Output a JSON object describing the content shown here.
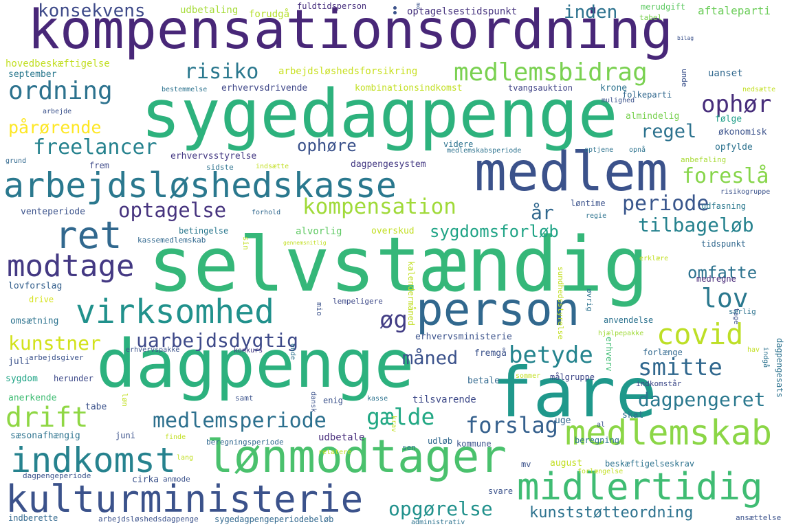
{
  "words": [
    {
      "text": "kompensationsordning",
      "color": "#482778"
    },
    {
      "text": "sygedagpenge",
      "color": "#2db27d"
    },
    {
      "text": "medlem",
      "color": "#3b528b"
    },
    {
      "text": "arbejdsløshedskasse",
      "color": "#2a788e"
    },
    {
      "text": "selvstændig",
      "color": "#35b779"
    },
    {
      "text": "person",
      "color": "#31688e"
    },
    {
      "text": "dagpenge",
      "color": "#2cb17e"
    },
    {
      "text": "fare",
      "color": "#1f988b"
    },
    {
      "text": "lønmodtager",
      "color": "#4ac16d"
    },
    {
      "text": "medlemskab",
      "color": "#8bd646"
    },
    {
      "text": "midlertidig",
      "color": "#3fbc73"
    },
    {
      "text": "kulturministerie",
      "color": "#3b528b"
    },
    {
      "text": "indkomst",
      "color": "#26828e"
    },
    {
      "text": "virksomhed",
      "color": "#21918c"
    },
    {
      "text": "modtage",
      "color": "#443983"
    },
    {
      "text": "ret",
      "color": "#31688e"
    },
    {
      "text": "ordning",
      "color": "#2c728e"
    },
    {
      "text": "medlemsbidrag",
      "color": "#7ad151"
    },
    {
      "text": "risiko",
      "color": "#2a788e"
    },
    {
      "text": "konsekvens",
      "color": "#3e4a89"
    },
    {
      "text": "freelancer",
      "color": "#26828e"
    },
    {
      "text": "pårørende",
      "color": "#fde725"
    },
    {
      "text": "kompensation",
      "color": "#a0da39"
    },
    {
      "text": "optagelse",
      "color": "#46337e"
    },
    {
      "text": "ophør",
      "color": "#472d7b"
    },
    {
      "text": "regel",
      "color": "#2c728e"
    },
    {
      "text": "foreslå",
      "color": "#86d549"
    },
    {
      "text": "periode",
      "color": "#39568c"
    },
    {
      "text": "tilbageløb",
      "color": "#26828e"
    },
    {
      "text": "år",
      "color": "#31688e"
    },
    {
      "text": "sygdomsforløb",
      "color": "#20a486"
    },
    {
      "text": "lov",
      "color": "#2a788e"
    },
    {
      "text": "omfatte",
      "color": "#2c728e"
    },
    {
      "text": "covid",
      "color": "#bddf26"
    },
    {
      "text": "smitte",
      "color": "#31688e"
    },
    {
      "text": "betyde",
      "color": "#25848e"
    },
    {
      "text": "uarbejdsdygtig",
      "color": "#3e4a89"
    },
    {
      "text": "øg",
      "color": "#433e85"
    },
    {
      "text": "kunstner",
      "color": "#d2e21b"
    },
    {
      "text": "drift",
      "color": "#8fd744"
    },
    {
      "text": "medlemsperiode",
      "color": "#2d708e"
    },
    {
      "text": "gælde",
      "color": "#22a884"
    },
    {
      "text": "forslag",
      "color": "#35608d"
    },
    {
      "text": "måned",
      "color": "#3b528b"
    },
    {
      "text": "dagpengeret",
      "color": "#2a788e"
    },
    {
      "text": "opgørelse",
      "color": "#21918c"
    },
    {
      "text": "kunststøtteordning",
      "color": "#2c728e"
    },
    {
      "text": "inden",
      "color": "#2c728e"
    },
    {
      "text": "ophøre",
      "color": "#3b528b"
    },
    {
      "text": "udbetaling",
      "color": "#a5db36"
    },
    {
      "text": "forudgå",
      "color": "#b5de2b"
    },
    {
      "text": "fuldtidsperson",
      "color": "#472f7d"
    },
    {
      "text": "optagelsestidspunkt",
      "color": "#46337e"
    },
    {
      "text": "merudgift",
      "color": "#5ec962"
    },
    {
      "text": "aftaleparti",
      "color": "#6ccd5a"
    },
    {
      "text": "tabel",
      "color": "#7ad151"
    },
    {
      "text": "hovedbeskæftigelse",
      "color": "#c2df23"
    },
    {
      "text": "september",
      "color": "#2a788e"
    },
    {
      "text": "arbejdsløshedsforsikring",
      "color": "#c8e020"
    },
    {
      "text": "erhvervsdrivende",
      "color": "#3f4788"
    },
    {
      "text": "kombinationsindkomst",
      "color": "#c2df23"
    },
    {
      "text": "tvangsauktion",
      "color": "#414487"
    },
    {
      "text": "krone",
      "color": "#2c728e"
    },
    {
      "text": "folkeparti",
      "color": "#31688e"
    },
    {
      "text": "uanset",
      "color": "#31688e"
    },
    {
      "text": "almindelig",
      "color": "#7ad151"
    },
    {
      "text": "følge",
      "color": "#1f9e89"
    },
    {
      "text": "økonomisk",
      "color": "#3b528b"
    },
    {
      "text": "opfylde",
      "color": "#2c728e"
    },
    {
      "text": "erhvervsstyrelse",
      "color": "#443983"
    },
    {
      "text": "videre",
      "color": "#2c728e"
    },
    {
      "text": "medlemskabsperiode",
      "color": "#2c728e"
    },
    {
      "text": "optjene",
      "color": "#2c728e"
    },
    {
      "text": "dagpengesystem",
      "color": "#443983"
    },
    {
      "text": "frem",
      "color": "#3e4a89"
    },
    {
      "text": "sidste",
      "color": "#2c728e"
    },
    {
      "text": "indsætte",
      "color": "#c2df23"
    },
    {
      "text": "anbefaling",
      "color": "#a8db34"
    },
    {
      "text": "grund",
      "color": "#31688e"
    },
    {
      "text": "venteperiode",
      "color": "#3b528b"
    },
    {
      "text": "løntime",
      "color": "#3b528b"
    },
    {
      "text": "udfasning",
      "color": "#2a788e"
    },
    {
      "text": "forhold",
      "color": "#31688e"
    },
    {
      "text": "betingelse",
      "color": "#2a788e"
    },
    {
      "text": "kassemedlemskab",
      "color": "#31688e"
    },
    {
      "text": "alvorlig",
      "color": "#5ec962"
    },
    {
      "text": "overskud",
      "color": "#c2df23"
    },
    {
      "text": "tidspunkt",
      "color": "#31688e"
    },
    {
      "text": "lovforslag",
      "color": "#35608d"
    },
    {
      "text": "drive",
      "color": "#d5e21a"
    },
    {
      "text": "lempeligere",
      "color": "#3e4a89"
    },
    {
      "text": "medregne",
      "color": "#482878"
    },
    {
      "text": "omsætning",
      "color": "#2c728e"
    },
    {
      "text": "erhvervsministerie",
      "color": "#3b528b"
    },
    {
      "text": "anvendelse",
      "color": "#2c728e"
    },
    {
      "text": "hjælpepakke",
      "color": "#a0da39"
    },
    {
      "text": "juli",
      "color": "#3b528b"
    },
    {
      "text": "arbejdsgiver",
      "color": "#3b528b"
    },
    {
      "text": "erhvervspakke",
      "color": "#3b528b"
    },
    {
      "text": "konkurs",
      "color": "#443983"
    },
    {
      "text": "fremgå",
      "color": "#3b528b"
    },
    {
      "text": "forlænge",
      "color": "#31688e"
    },
    {
      "text": "sygdom",
      "color": "#20a486"
    },
    {
      "text": "herunder",
      "color": "#3e4a89"
    },
    {
      "text": "betale",
      "color": "#31688e"
    },
    {
      "text": "sommer",
      "color": "#c2df23"
    },
    {
      "text": "målgruppe",
      "color": "#3f4788"
    },
    {
      "text": "indkomstår",
      "color": "#3e4a89"
    },
    {
      "text": "anerkende",
      "color": "#3fbc73"
    },
    {
      "text": "tabe",
      "color": "#3b528b"
    },
    {
      "text": "samt",
      "color": "#3b528b"
    },
    {
      "text": "enig",
      "color": "#3b528b"
    },
    {
      "text": "tilsvarende",
      "color": "#3e4a89"
    },
    {
      "text": "kasse",
      "color": "#2c728e"
    },
    {
      "text": "uge",
      "color": "#31688e"
    },
    {
      "text": "skat",
      "color": "#2c728e"
    },
    {
      "text": "sæsonafhængig",
      "color": "#2c728e"
    },
    {
      "text": "juni",
      "color": "#3b528b"
    },
    {
      "text": "udbetale",
      "color": "#472d7b"
    },
    {
      "text": "udløb",
      "color": "#31688e"
    },
    {
      "text": "kommune",
      "color": "#3b528b"
    },
    {
      "text": "beregning",
      "color": "#2c728e"
    },
    {
      "text": "beregningsperiode",
      "color": "#31688e"
    },
    {
      "text": "relatere",
      "color": "#c2df23"
    },
    {
      "text": "sen",
      "color": "#2c728e"
    },
    {
      "text": "august",
      "color": "#c2df23"
    },
    {
      "text": "beskæftigelseskrav",
      "color": "#2c728e"
    },
    {
      "text": "dagpengeperiode",
      "color": "#3b528b"
    },
    {
      "text": "cirka",
      "color": "#3b528b"
    },
    {
      "text": "anmode",
      "color": "#3b528b"
    },
    {
      "text": "forlængelse",
      "color": "#c2df23"
    },
    {
      "text": "svare",
      "color": "#3b528b"
    },
    {
      "text": "indberette",
      "color": "#31688e"
    },
    {
      "text": "arbejdsløshedsdagpenge",
      "color": "#3b528b"
    },
    {
      "text": "sygedagpengeperiodebeløb",
      "color": "#31688e"
    },
    {
      "text": "administrativ",
      "color": "#2c728e"
    },
    {
      "text": "ansættelse",
      "color": "#3b528b"
    },
    {
      "text": "mv",
      "color": "#3b528b"
    },
    {
      "text": "al",
      "color": "#3b528b"
    },
    {
      "text": "finde",
      "color": "#c2df23"
    },
    {
      "text": "lang",
      "color": "#c2df23"
    },
    {
      "text": "særlig",
      "color": "#2c728e"
    },
    {
      "text": "hav",
      "color": "#c2df23"
    },
    {
      "text": "erklære",
      "color": "#c2df23"
    },
    {
      "text": "bestemmelse",
      "color": "#2c728e"
    },
    {
      "text": "nedsætte",
      "color": "#c2df23"
    },
    {
      "text": "mulighed",
      "color": "#3b528b"
    },
    {
      "text": "opnå",
      "color": "#2c728e"
    },
    {
      "text": "arbejde",
      "color": "#3b528b"
    },
    {
      "text": "risikogruppe",
      "color": "#3b528b"
    },
    {
      "text": "regie",
      "color": "#2c728e"
    },
    {
      "text": "ende",
      "color": "#2c728e"
    },
    {
      "text": "unde",
      "color": "#3b528b"
    },
    {
      "text": "sin",
      "color": "#c2df23"
    },
    {
      "text": "mio",
      "color": "#3b528b"
    },
    {
      "text": "kalendermåned",
      "color": "#c2df23"
    },
    {
      "text": "dansk",
      "color": "#3b528b"
    },
    {
      "text": "løn",
      "color": "#c2df23"
    },
    {
      "text": "krav",
      "color": "#c2df23"
    },
    {
      "text": "øvrig",
      "color": "#2c728e"
    },
    {
      "text": "erhverv",
      "color": "#3fbc73"
    },
    {
      "text": "indgå",
      "color": "#2c728e"
    },
    {
      "text": "dagpengesats",
      "color": "#2c728e"
    },
    {
      "text": "sundhedsstyrelse",
      "color": "#c2df23"
    },
    {
      "text": "tage",
      "color": "#3b528b"
    },
    {
      "text": "mo",
      "color": "#3b528b"
    },
    {
      "text": "bilag",
      "color": "#3b528b"
    },
    {
      "text": "gennemsnitlig",
      "color": "#c2df23"
    }
  ]
}
